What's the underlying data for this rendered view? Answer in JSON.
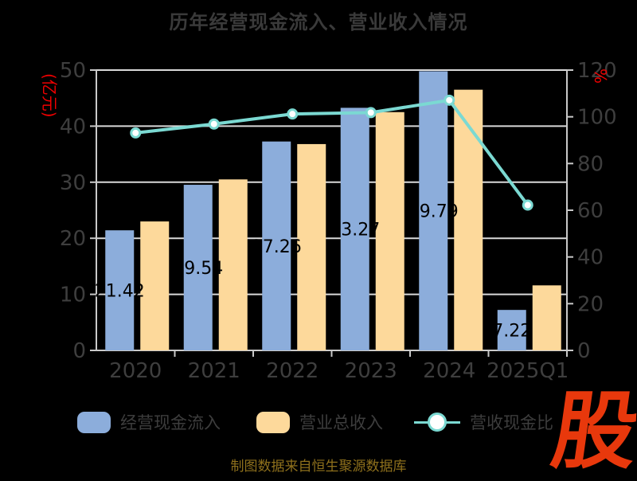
{
  "title": "历年经营现金流入、营业收入情况",
  "caption": "制图数据来自恒生聚源数据库",
  "watermark": "股",
  "colors": {
    "background": "#000000",
    "title": "#3a3a3a",
    "tick_label": "#3e3e3e",
    "axis_line": "#c9c9c9",
    "grid_line": "#d9d9d9",
    "bar_cash": "#8caddb",
    "bar_revenue": "#fdd99b",
    "ratio_line": "#7bd9d2",
    "marker_fill": "#ffffff",
    "value_label": "#000000",
    "unit_label": "#ee0000",
    "caption": "#8e701c",
    "watermark": "#e8380c"
  },
  "chart_data": {
    "type": "bar",
    "subtype": "grouped-bars-with-line",
    "title": "历年经营现金流入、营业收入情况",
    "categories": [
      "2020",
      "2021",
      "2022",
      "2023",
      "2024",
      "2025Q1"
    ],
    "series": [
      {
        "name": "经营现金流入",
        "type": "bar",
        "axis": "left",
        "color": "#8caddb",
        "values": [
          21.42,
          29.54,
          37.26,
          43.27,
          49.79,
          7.22
        ],
        "data_labels": [
          "21.42",
          "29.54",
          "37.26",
          "43.27",
          "49.79",
          "7.22"
        ]
      },
      {
        "name": "营业总收入",
        "type": "bar",
        "axis": "left",
        "color": "#fdd99b",
        "values": [
          23.0,
          30.5,
          36.8,
          42.5,
          46.5,
          11.6
        ]
      },
      {
        "name": "营收现金比",
        "type": "line",
        "axis": "right",
        "color": "#7bd9d2",
        "values": [
          93.1,
          96.9,
          101.2,
          101.8,
          107.1,
          62.2
        ]
      }
    ],
    "left_axis": {
      "label": "(亿元)",
      "min": 0,
      "max": 50,
      "step": 10,
      "ticks": [
        "0",
        "10",
        "20",
        "30",
        "40",
        "50"
      ]
    },
    "right_axis": {
      "label": "%",
      "min": 0,
      "max": 120,
      "step": 20,
      "ticks": [
        "0",
        "20",
        "40",
        "60",
        "80",
        "100",
        "120"
      ]
    },
    "grid": true,
    "legend_position": "bottom"
  }
}
